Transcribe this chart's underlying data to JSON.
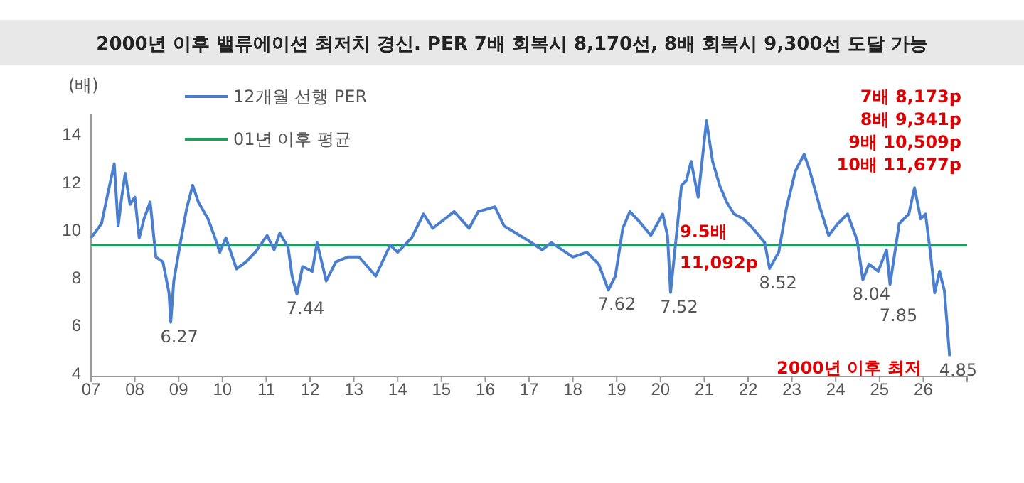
{
  "chart_data": {
    "type": "line",
    "title": "2000년 이후 밸류에이션 최저치 경신. PER 7배 회복시 8,170선, 8배 회복시 9,300선 도달 가능",
    "ylabel": "(배)",
    "xlim": [
      2007,
      2027
    ],
    "xticks": [
      {
        "value": 2007,
        "label": "07"
      },
      {
        "value": 2008,
        "label": "08"
      },
      {
        "value": 2009,
        "label": "09"
      },
      {
        "value": 2010,
        "label": "10"
      },
      {
        "value": 2011,
        "label": "11"
      },
      {
        "value": 2012,
        "label": "12"
      },
      {
        "value": 2013,
        "label": "13"
      },
      {
        "value": 2014,
        "label": "14"
      },
      {
        "value": 2015,
        "label": "15"
      },
      {
        "value": 2016,
        "label": "16"
      },
      {
        "value": 2017,
        "label": "17"
      },
      {
        "value": 2018,
        "label": "18"
      },
      {
        "value": 2019,
        "label": "19"
      },
      {
        "value": 2020,
        "label": "20"
      },
      {
        "value": 2021,
        "label": "21"
      },
      {
        "value": 2022,
        "label": "22"
      },
      {
        "value": 2023,
        "label": "23"
      },
      {
        "value": 2024,
        "label": "24"
      },
      {
        "value": 2025,
        "label": "25"
      },
      {
        "value": 2026,
        "label": "26"
      }
    ],
    "ylim": [
      4,
      15
    ],
    "yticks": [
      4,
      6,
      8,
      10,
      12,
      14
    ],
    "legend": "top left",
    "grid": false,
    "series": [
      {
        "name": "12개월 선행 PER",
        "color": "#4a7fd0",
        "x": [
          2007.0,
          2007.24,
          2007.4,
          2007.53,
          2007.62,
          2007.7,
          2007.78,
          2007.89,
          2008.0,
          2008.1,
          2008.21,
          2008.35,
          2008.48,
          2008.64,
          2008.78,
          2008.82,
          2008.89,
          2009.02,
          2009.18,
          2009.32,
          2009.45,
          2009.67,
          2009.83,
          2009.94,
          2010.08,
          2010.32,
          2010.54,
          2010.75,
          2011.02,
          2011.18,
          2011.31,
          2011.5,
          2011.59,
          2011.7,
          2011.83,
          2012.05,
          2012.16,
          2012.37,
          2012.59,
          2012.86,
          2013.12,
          2013.5,
          2013.83,
          2014.0,
          2014.32,
          2014.59,
          2014.8,
          2015.29,
          2015.63,
          2015.84,
          2016.22,
          2016.43,
          2016.7,
          2016.97,
          2017.3,
          2017.51,
          2018.0,
          2018.32,
          2018.59,
          2018.81,
          2018.97,
          2019.14,
          2019.3,
          2019.51,
          2019.78,
          2020.05,
          2020.16,
          2020.23,
          2020.38,
          2020.48,
          2020.59,
          2020.7,
          2020.86,
          2021.05,
          2021.19,
          2021.35,
          2021.51,
          2021.68,
          2021.89,
          2022.11,
          2022.38,
          2022.49,
          2022.7,
          2022.87,
          2023.08,
          2023.28,
          2023.41,
          2023.62,
          2023.84,
          2024.05,
          2024.27,
          2024.49,
          2024.62,
          2024.76,
          2024.97,
          2025.16,
          2025.24,
          2025.45,
          2025.67,
          2025.8,
          2025.94,
          2026.05,
          2026.16,
          2026.26,
          2026.37,
          2026.48,
          2026.6
        ],
        "values": [
          9.8,
          10.4,
          11.8,
          12.9,
          10.3,
          11.5,
          12.5,
          11.2,
          11.5,
          9.8,
          10.6,
          11.3,
          9.0,
          8.8,
          7.5,
          6.27,
          8.0,
          9.4,
          11.0,
          12.0,
          11.3,
          10.6,
          9.8,
          9.2,
          9.8,
          8.5,
          8.8,
          9.2,
          9.9,
          9.3,
          10.0,
          9.4,
          8.2,
          7.44,
          8.6,
          8.4,
          9.6,
          8.0,
          8.8,
          9.0,
          9.0,
          8.2,
          9.5,
          9.2,
          9.8,
          10.8,
          10.2,
          10.9,
          10.2,
          10.9,
          11.1,
          10.3,
          10.0,
          9.7,
          9.3,
          9.6,
          9.0,
          9.2,
          8.7,
          7.62,
          8.2,
          10.2,
          10.9,
          10.5,
          9.9,
          10.8,
          9.9,
          7.52,
          10.2,
          12.0,
          12.2,
          13.0,
          11.5,
          14.7,
          13.0,
          12.0,
          11.3,
          10.8,
          10.6,
          10.2,
          9.6,
          8.52,
          9.2,
          11.0,
          12.6,
          13.3,
          12.6,
          11.2,
          9.9,
          10.4,
          10.8,
          9.7,
          8.04,
          8.7,
          8.4,
          9.3,
          7.85,
          10.4,
          10.8,
          11.9,
          10.6,
          10.8,
          9.2,
          7.5,
          8.4,
          7.6,
          4.85
        ]
      },
      {
        "name": "01년 이후 평균",
        "color": "#1aa05a",
        "x": [
          2007,
          2027
        ],
        "values": [
          9.5,
          9.5
        ]
      }
    ],
    "annotations": [
      {
        "text": "6.27",
        "x": 2008.82,
        "y": 6.27
      },
      {
        "text": "7.44",
        "x": 2011.7,
        "y": 7.44
      },
      {
        "text": "7.62",
        "x": 2018.81,
        "y": 7.62
      },
      {
        "text": "7.52",
        "x": 2020.23,
        "y": 7.52
      },
      {
        "text": "8.52",
        "x": 2022.49,
        "y": 8.52
      },
      {
        "text": "8.04",
        "x": 2024.62,
        "y": 8.04
      },
      {
        "text": "7.85",
        "x": 2025.24,
        "y": 7.85
      },
      {
        "text": "4.85",
        "x": 2026.6,
        "y": 4.85
      },
      "7배 8,173p",
      "8배 9,341p",
      "9배  10,509p",
      "10배 11,677p",
      "9.5배",
      "11,092p",
      "2000년 이후 최저"
    ]
  }
}
